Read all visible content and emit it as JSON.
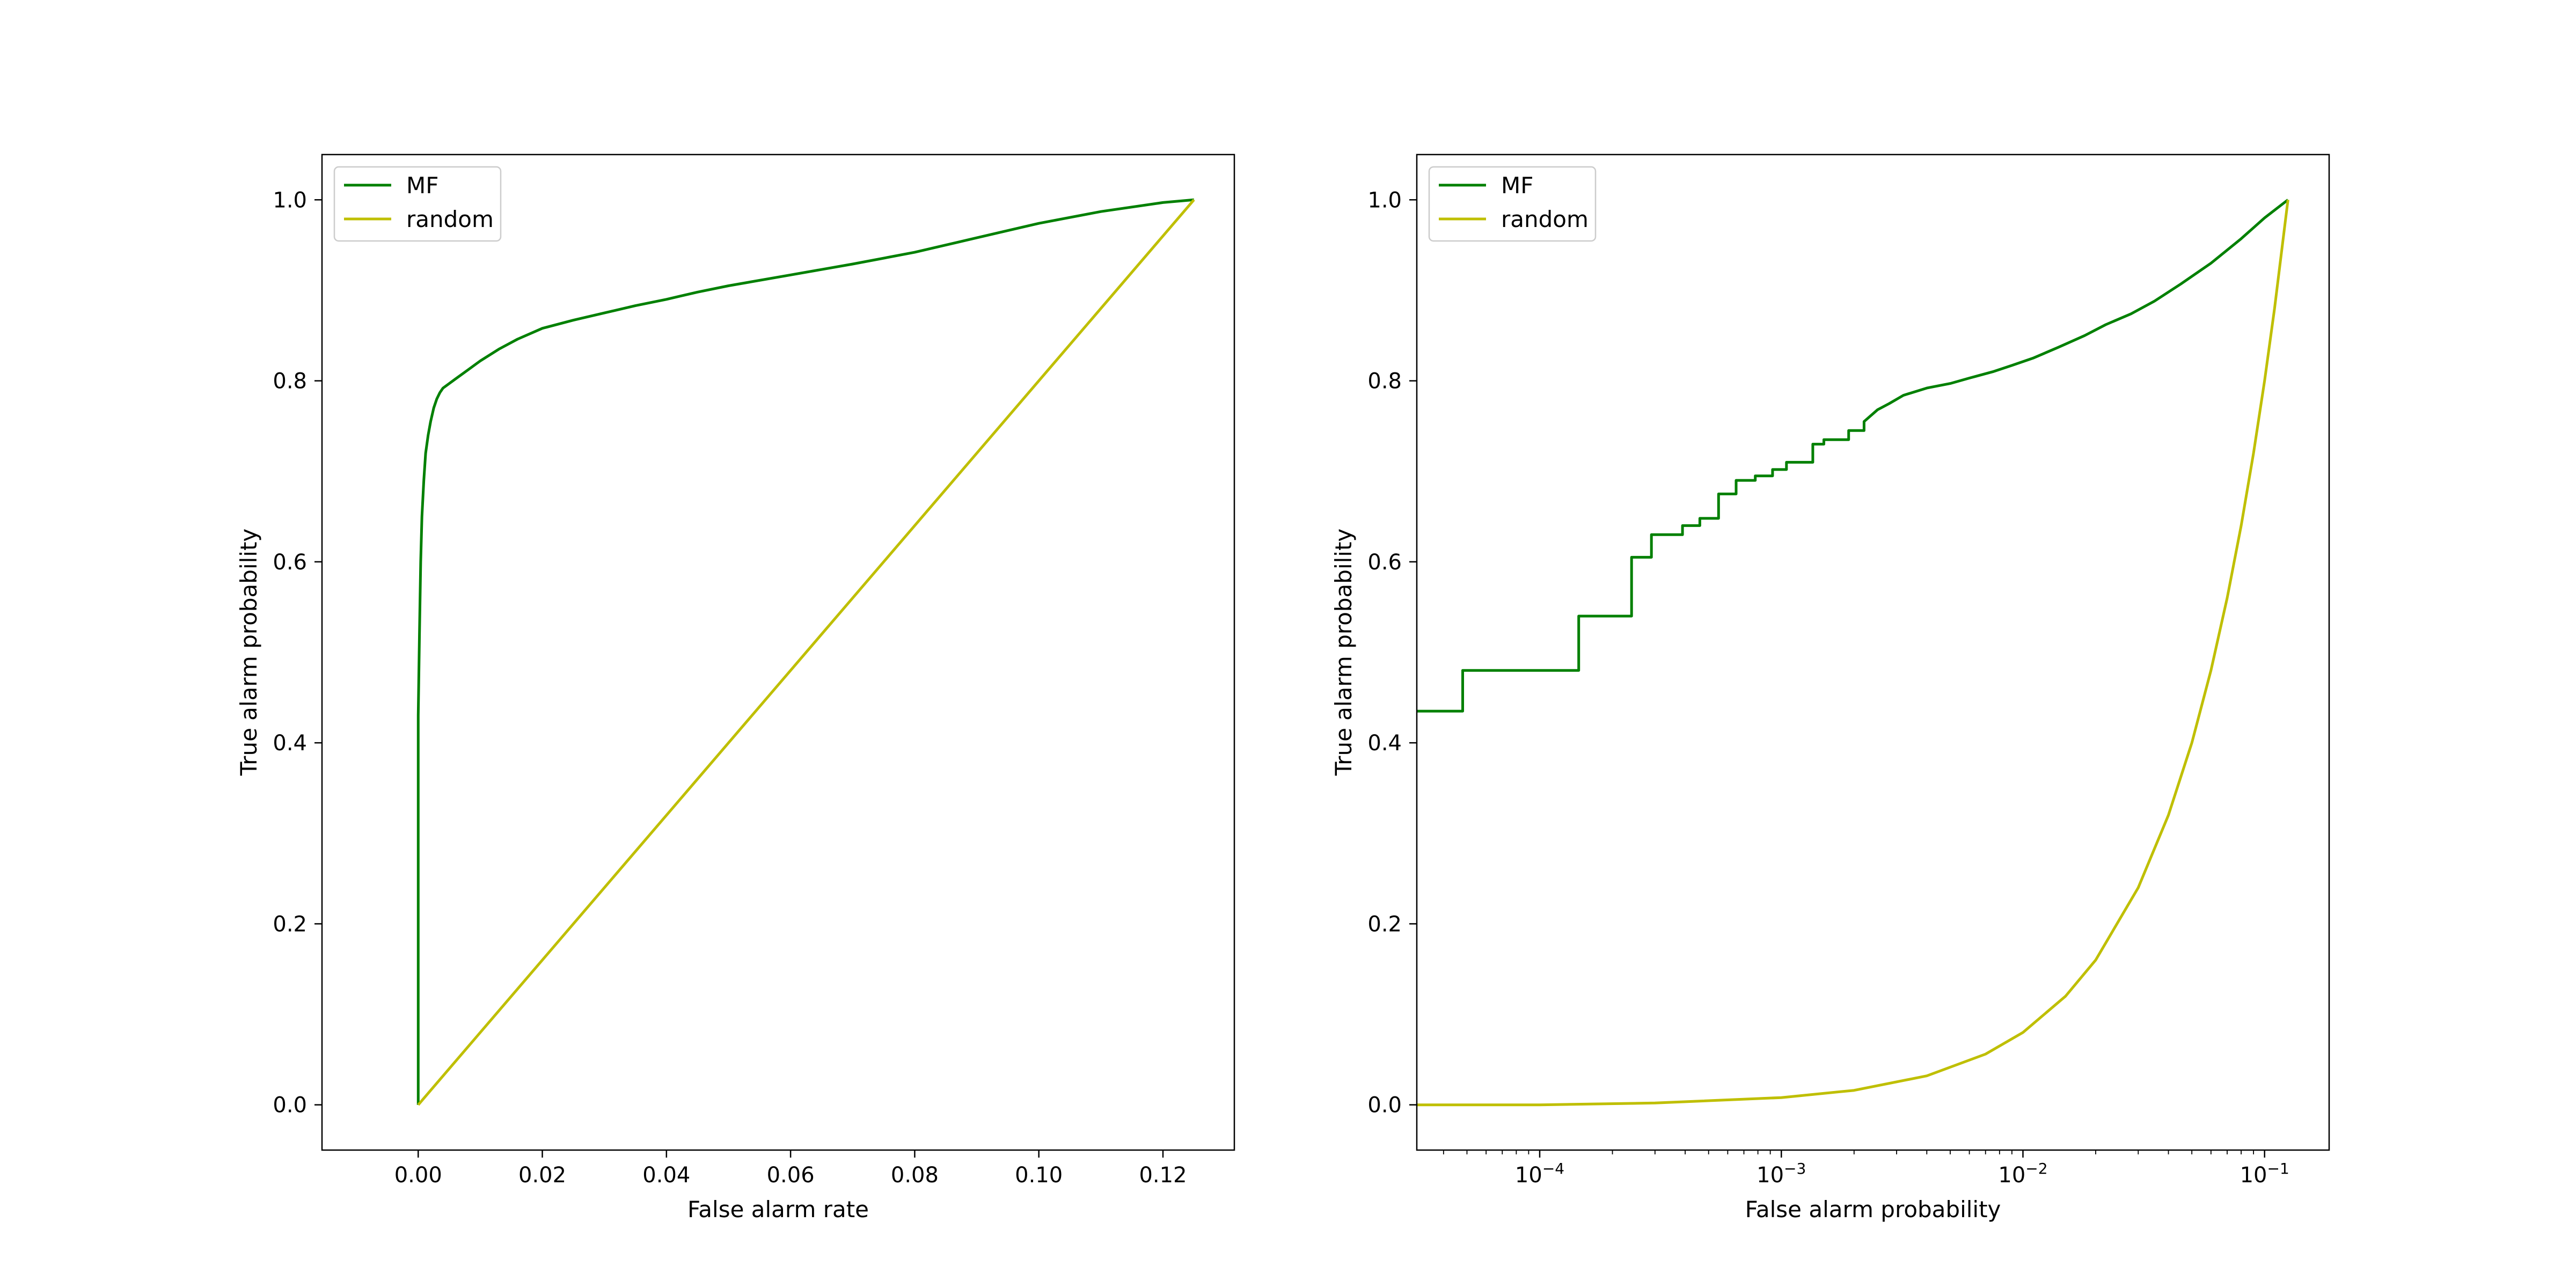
{
  "chart_data": [
    {
      "type": "line",
      "xlabel": "False alarm rate",
      "ylabel": "True alarm probability",
      "xscale": "linear",
      "xlim": [
        -0.0155,
        0.1315
      ],
      "ylim": [
        -0.05,
        1.05
      ],
      "xticks": [
        0.0,
        0.02,
        0.04,
        0.06,
        0.08,
        0.1,
        0.12
      ],
      "xtick_labels": [
        "0.00",
        "0.02",
        "0.04",
        "0.06",
        "0.08",
        "0.10",
        "0.12"
      ],
      "yticks": [
        0.0,
        0.2,
        0.4,
        0.6,
        0.8,
        1.0
      ],
      "ytick_labels": [
        "0.0",
        "0.2",
        "0.4",
        "0.6",
        "0.8",
        "1.0"
      ],
      "grid": false,
      "legend": "top-left",
      "series": [
        {
          "name": "MF",
          "color": "#008000",
          "x": [
            0,
            0,
            0.0002,
            0.0004,
            0.0006,
            0.0009,
            0.0012,
            0.0016,
            0.002,
            0.0025,
            0.003,
            0.0035,
            0.004,
            0.005,
            0.006,
            0.008,
            0.01,
            0.013,
            0.016,
            0.02,
            0.025,
            0.03,
            0.035,
            0.04,
            0.045,
            0.05,
            0.06,
            0.07,
            0.08,
            0.09,
            0.1,
            0.11,
            0.12,
            0.125
          ],
          "y": [
            0,
            0.43,
            0.52,
            0.6,
            0.65,
            0.69,
            0.72,
            0.74,
            0.755,
            0.77,
            0.78,
            0.787,
            0.792,
            0.797,
            0.802,
            0.812,
            0.822,
            0.835,
            0.846,
            0.858,
            0.867,
            0.875,
            0.883,
            0.89,
            0.898,
            0.905,
            0.917,
            0.929,
            0.942,
            0.958,
            0.974,
            0.987,
            0.997,
            1.0
          ]
        },
        {
          "name": "random",
          "color": "#bfbf00",
          "x": [
            0,
            0.125
          ],
          "y": [
            0,
            1.0
          ]
        }
      ]
    },
    {
      "type": "line",
      "xlabel": "False alarm probability",
      "ylabel": "True alarm probability",
      "xscale": "log",
      "xlim": [
        3.1e-05,
        0.185
      ],
      "ylim": [
        -0.05,
        1.05
      ],
      "xticks": [
        0.0001,
        0.001,
        0.01,
        0.1
      ],
      "xtick_labels": [
        {
          "base": "10",
          "exp": "−4"
        },
        {
          "base": "10",
          "exp": "−3"
        },
        {
          "base": "10",
          "exp": "−2"
        },
        {
          "base": "10",
          "exp": "−1"
        }
      ],
      "yticks": [
        0.0,
        0.2,
        0.4,
        0.6,
        0.8,
        1.0
      ],
      "ytick_labels": [
        "0.0",
        "0.2",
        "0.4",
        "0.6",
        "0.8",
        "1.0"
      ],
      "grid": false,
      "legend": "top-left",
      "series": [
        {
          "name": "MF",
          "color": "#008000",
          "x": [
            3.1e-05,
            4.8e-05,
            4.8e-05,
            0.000145,
            0.000145,
            0.00024,
            0.00024,
            0.00029,
            0.00029,
            0.00039,
            0.00039,
            0.00046,
            0.00046,
            0.00055,
            0.00055,
            0.00065,
            0.00065,
            0.00078,
            0.00078,
            0.00092,
            0.00092,
            0.00105,
            0.00105,
            0.00135,
            0.00135,
            0.0015,
            0.0015,
            0.0019,
            0.0019,
            0.0022,
            0.0022,
            0.0025,
            0.0028,
            0.0032,
            0.004,
            0.005,
            0.006,
            0.0075,
            0.009,
            0.011,
            0.014,
            0.018,
            0.022,
            0.028,
            0.035,
            0.045,
            0.06,
            0.08,
            0.1,
            0.125
          ],
          "y": [
            0.435,
            0.435,
            0.48,
            0.48,
            0.54,
            0.54,
            0.605,
            0.605,
            0.63,
            0.63,
            0.64,
            0.64,
            0.648,
            0.648,
            0.675,
            0.675,
            0.69,
            0.69,
            0.695,
            0.695,
            0.702,
            0.702,
            0.71,
            0.71,
            0.73,
            0.73,
            0.735,
            0.735,
            0.745,
            0.745,
            0.755,
            0.768,
            0.775,
            0.784,
            0.792,
            0.797,
            0.803,
            0.81,
            0.817,
            0.825,
            0.837,
            0.85,
            0.862,
            0.874,
            0.888,
            0.907,
            0.93,
            0.957,
            0.98,
            1.0
          ]
        },
        {
          "name": "random",
          "color": "#bfbf00",
          "x": [
            3.1e-05,
            0.0001,
            0.0003,
            0.001,
            0.002,
            0.004,
            0.007,
            0.01,
            0.015,
            0.02,
            0.03,
            0.04,
            0.05,
            0.06,
            0.07,
            0.08,
            0.09,
            0.1,
            0.11,
            0.125
          ],
          "y": [
            0.0,
            0.0,
            0.002,
            0.008,
            0.016,
            0.032,
            0.056,
            0.08,
            0.12,
            0.16,
            0.24,
            0.32,
            0.4,
            0.48,
            0.56,
            0.64,
            0.72,
            0.8,
            0.88,
            1.0
          ]
        }
      ]
    }
  ]
}
